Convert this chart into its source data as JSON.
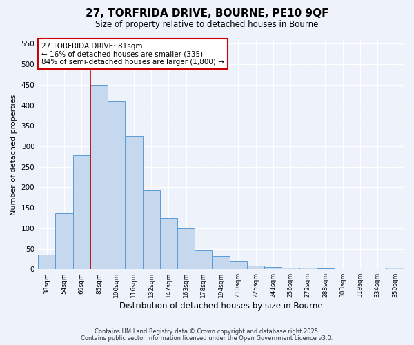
{
  "title": "27, TORFRIDA DRIVE, BOURNE, PE10 9QF",
  "subtitle": "Size of property relative to detached houses in Bourne",
  "xlabel": "Distribution of detached houses by size in Bourne",
  "ylabel": "Number of detached properties",
  "bin_labels": [
    "38sqm",
    "54sqm",
    "69sqm",
    "85sqm",
    "100sqm",
    "116sqm",
    "132sqm",
    "147sqm",
    "163sqm",
    "178sqm",
    "194sqm",
    "210sqm",
    "225sqm",
    "241sqm",
    "256sqm",
    "272sqm",
    "288sqm",
    "303sqm",
    "319sqm",
    "334sqm",
    "350sqm"
  ],
  "bar_values": [
    35,
    137,
    278,
    450,
    410,
    325,
    192,
    125,
    100,
    46,
    32,
    20,
    8,
    5,
    4,
    3,
    2,
    1,
    1,
    1,
    3
  ],
  "bar_color": "#c5d8ee",
  "bar_edgecolor": "#5b9bd5",
  "vline_bin_index": 3,
  "annotation_title": "27 TORFRIDA DRIVE: 81sqm",
  "annotation_line1": "← 16% of detached houses are smaller (335)",
  "annotation_line2": "84% of semi-detached houses are larger (1,800) →",
  "annotation_box_facecolor": "#ffffff",
  "annotation_box_edgecolor": "#cc0000",
  "vline_color": "#cc0000",
  "ylim": [
    0,
    560
  ],
  "yticks": [
    0,
    50,
    100,
    150,
    200,
    250,
    300,
    350,
    400,
    450,
    500,
    550
  ],
  "footer_line1": "Contains HM Land Registry data © Crown copyright and database right 2025.",
  "footer_line2": "Contains public sector information licensed under the Open Government Licence v3.0.",
  "background_color": "#eef2fa"
}
